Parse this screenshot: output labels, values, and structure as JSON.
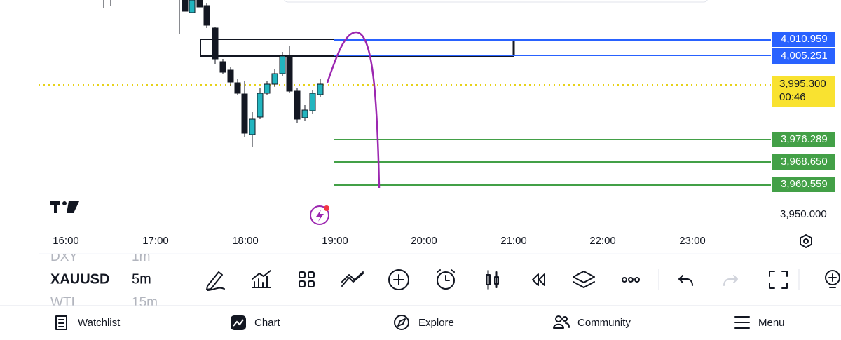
{
  "price_labels": [
    "4,010.959",
    "4,005.251",
    "3,995.300",
    "3,976.289",
    "3,968.650",
    "3,960.559",
    "3,950.000"
  ],
  "countdown": "00:46",
  "time_labels": [
    "16:00",
    "17:00",
    "18:00",
    "19:00",
    "20:00",
    "21:00",
    "22:00",
    "23:00"
  ],
  "symbols": {
    "above": {
      "name": "DXY",
      "interval": "1m"
    },
    "current": {
      "name": "XAUUSD",
      "interval": "5m"
    },
    "below": {
      "name": "WTI",
      "interval": "15m"
    }
  },
  "nav": [
    "Watchlist",
    "Chart",
    "Explore",
    "Community",
    "Menu"
  ]
}
